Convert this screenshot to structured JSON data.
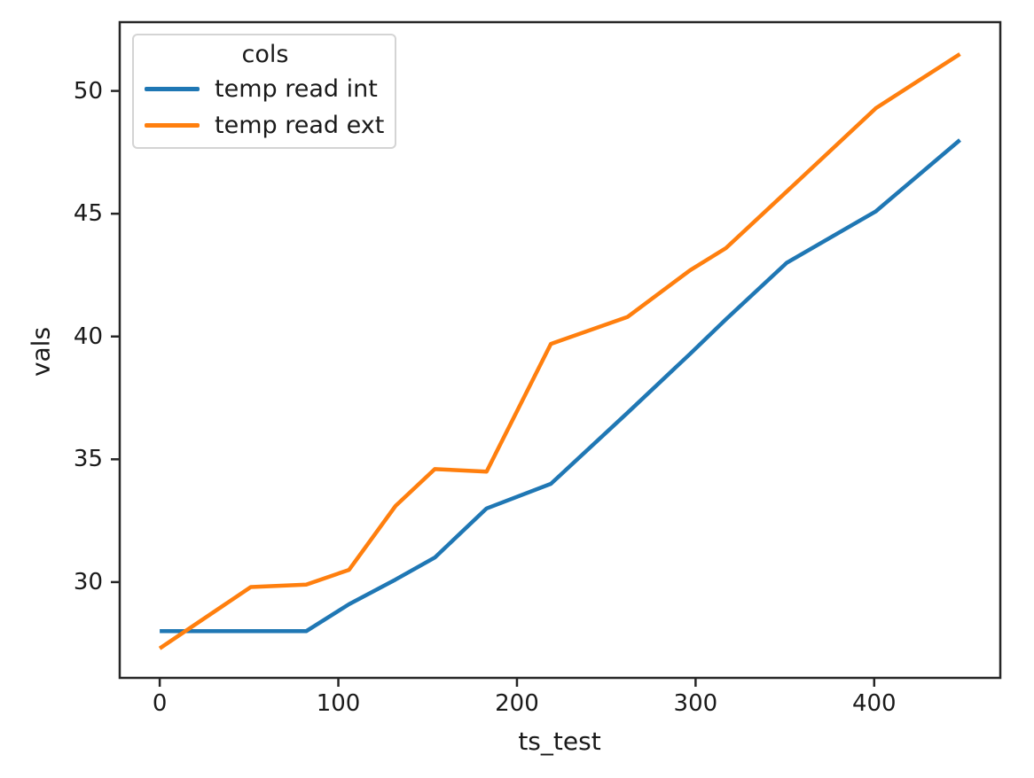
{
  "chart_data": {
    "type": "line",
    "title": "",
    "xlabel": "ts_test",
    "ylabel": "vals",
    "x": [
      0,
      51,
      82,
      106,
      132,
      154,
      183,
      219,
      262,
      297,
      317,
      351,
      401,
      448
    ],
    "series": [
      {
        "name": "temp read int",
        "color": "#1f77b4",
        "values": [
          28.0,
          28.0,
          28.0,
          29.1,
          30.1,
          31.0,
          33.0,
          34.0,
          36.9,
          39.3,
          40.7,
          43.0,
          45.1,
          48.0
        ]
      },
      {
        "name": "temp read ext",
        "color": "#ff7f0e",
        "values": [
          27.3,
          29.8,
          29.9,
          30.5,
          33.1,
          34.6,
          34.5,
          39.7,
          40.8,
          42.7,
          43.6,
          45.9,
          49.3,
          51.5
        ]
      }
    ],
    "x_ticks": [
      "0",
      "100",
      "200",
      "300",
      "400"
    ],
    "x_tick_values": [
      0,
      100,
      200,
      300,
      400
    ],
    "y_ticks": [
      "30",
      "35",
      "40",
      "45",
      "50"
    ],
    "y_tick_values": [
      30,
      35,
      40,
      45,
      50
    ],
    "xlim": [
      -22.4,
      470.6
    ],
    "ylim": [
      26.1,
      52.8
    ],
    "grid": false,
    "legend": {
      "title": "cols",
      "position": "upper left"
    }
  },
  "colors": {
    "axis": "#262626",
    "text": "#1a1a1a"
  }
}
